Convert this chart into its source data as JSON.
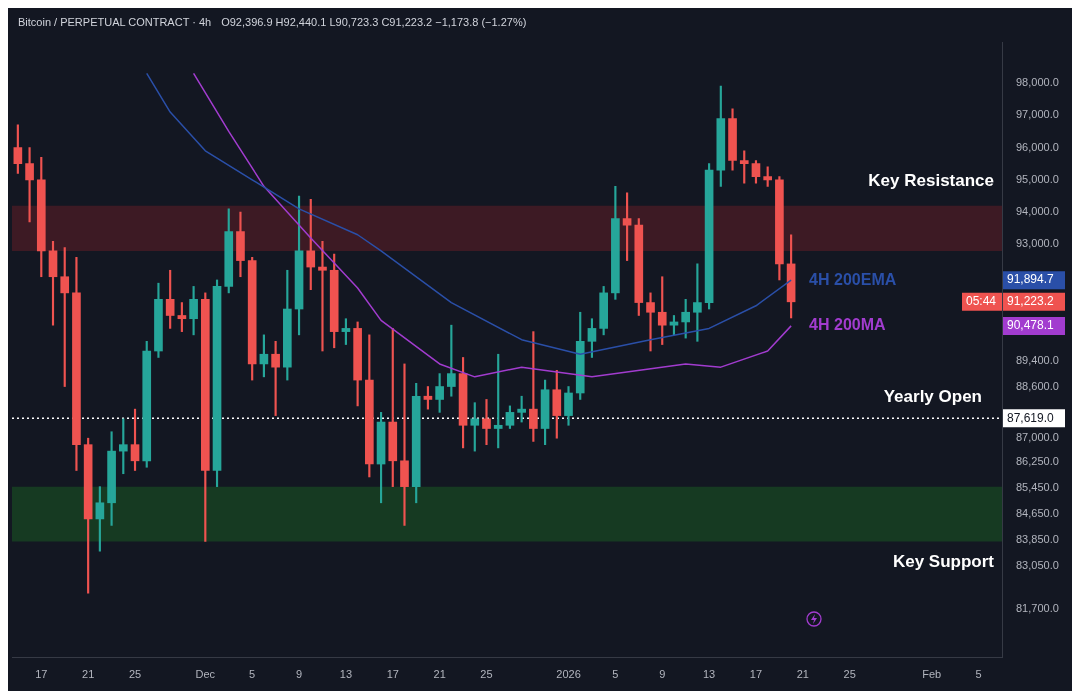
{
  "chart_data": {
    "type": "candlestick",
    "title": "Bitcoin / PERPETUAL CONTRACT · 4h",
    "subtitle": "O92,396.9 H92,440.1 L90,723.3 C91,223.2 −1,173.8 (−1.27%)",
    "annotations": [
      "91,223.2",
      "05:44",
      "91,894.7",
      "90,478.1",
      "87,619.0"
    ],
    "x": [
      "2025-11-15",
      "2025-11-16",
      "2025-11-17",
      "2025-11-18",
      "2025-11-19",
      "2025-11-20",
      "2025-11-21",
      "2025-11-22",
      "2025-11-23",
      "2025-11-24",
      "2025-11-25",
      "2025-11-26",
      "2025-11-27",
      "2025-11-28",
      "2025-11-29",
      "2025-11-30",
      "2025-12-01",
      "2025-12-02",
      "2025-12-03",
      "2025-12-04",
      "2025-12-05",
      "2025-12-06",
      "2025-12-07",
      "2025-12-08",
      "2025-12-09",
      "2025-12-10",
      "2025-12-11",
      "2025-12-12",
      "2025-12-13",
      "2025-12-14",
      "2025-12-15",
      "2025-12-16",
      "2025-12-17",
      "2025-12-18",
      "2025-12-19",
      "2025-12-20",
      "2025-12-21",
      "2025-12-22",
      "2025-12-23",
      "2025-12-24",
      "2025-12-25",
      "2025-12-26",
      "2025-12-27",
      "2025-12-28",
      "2025-12-29",
      "2025-12-30",
      "2025-12-31",
      "2026-01-01",
      "2026-01-02",
      "2026-01-03",
      "2026-01-04",
      "2026-01-05",
      "2026-01-06",
      "2026-01-07",
      "2026-01-08",
      "2026-01-09",
      "2026-01-10",
      "2026-01-11",
      "2026-01-12",
      "2026-01-13",
      "2026-01-14",
      "2026-01-15",
      "2026-01-16",
      "2026-01-17",
      "2026-01-18",
      "2026-01-19",
      "2026-01-20"
    ],
    "ohlc": [
      [
        96000,
        96700,
        95200,
        95500
      ],
      [
        95500,
        96000,
        93700,
        95000
      ],
      [
        95000,
        95700,
        92000,
        92800
      ],
      [
        92800,
        93100,
        90500,
        92000
      ],
      [
        92000,
        92900,
        88600,
        91500
      ],
      [
        91500,
        92600,
        86000,
        86800
      ],
      [
        86800,
        87000,
        82200,
        84500
      ],
      [
        84500,
        85500,
        83500,
        85000
      ],
      [
        85000,
        87200,
        84300,
        86600
      ],
      [
        86600,
        87600,
        85900,
        86800
      ],
      [
        86800,
        87900,
        86000,
        86300
      ],
      [
        86300,
        90000,
        86100,
        89700
      ],
      [
        89700,
        91800,
        89500,
        91300
      ],
      [
        91300,
        92200,
        90400,
        90800
      ],
      [
        90800,
        91200,
        90300,
        90700
      ],
      [
        90700,
        91700,
        90200,
        91300
      ],
      [
        91300,
        91500,
        83800,
        86000
      ],
      [
        86000,
        91900,
        85500,
        91700
      ],
      [
        91700,
        94100,
        91500,
        93400
      ],
      [
        93400,
        94000,
        92000,
        92500
      ],
      [
        92500,
        92600,
        88800,
        89300
      ],
      [
        89300,
        90200,
        88900,
        89600
      ],
      [
        89600,
        90000,
        87700,
        89200
      ],
      [
        89200,
        92200,
        88800,
        91000
      ],
      [
        91000,
        94500,
        90200,
        92800
      ],
      [
        92800,
        94400,
        91600,
        92300
      ],
      [
        92300,
        93100,
        89700,
        92200
      ],
      [
        92200,
        92700,
        89800,
        90300
      ],
      [
        90300,
        90700,
        89900,
        90400
      ],
      [
        90400,
        90600,
        88000,
        88800
      ],
      [
        88800,
        90200,
        85800,
        86200
      ],
      [
        86200,
        87800,
        85000,
        87500
      ],
      [
        87500,
        90400,
        85500,
        86300
      ],
      [
        86300,
        89300,
        84300,
        85500
      ],
      [
        85500,
        88700,
        85000,
        88300
      ],
      [
        88300,
        88600,
        87900,
        88200
      ],
      [
        88200,
        89000,
        87800,
        88600
      ],
      [
        88600,
        90500,
        88300,
        89000
      ],
      [
        89000,
        89500,
        86700,
        87400
      ],
      [
        87400,
        88100,
        86600,
        87600
      ],
      [
        87600,
        88200,
        86800,
        87300
      ],
      [
        87300,
        89600,
        86700,
        87400
      ],
      [
        87400,
        88000,
        87300,
        87800
      ],
      [
        87800,
        88300,
        87500,
        87900
      ],
      [
        87900,
        90300,
        86900,
        87300
      ],
      [
        87300,
        88800,
        86800,
        88500
      ],
      [
        88500,
        89100,
        87000,
        87700
      ],
      [
        87700,
        88600,
        87400,
        88400
      ],
      [
        88400,
        90900,
        88200,
        90000
      ],
      [
        90000,
        90700,
        89500,
        90400
      ],
      [
        90400,
        91700,
        90200,
        91500
      ],
      [
        91500,
        94800,
        91300,
        93800
      ],
      [
        93800,
        94600,
        92500,
        93600
      ],
      [
        93600,
        93800,
        90800,
        91200
      ],
      [
        91200,
        91500,
        89700,
        90900
      ],
      [
        90900,
        92000,
        89900,
        90500
      ],
      [
        90500,
        90800,
        90200,
        90600
      ],
      [
        90600,
        91300,
        90100,
        90900
      ],
      [
        90900,
        92400,
        90000,
        91200
      ],
      [
        91200,
        95500,
        91000,
        95300
      ],
      [
        95300,
        97900,
        94800,
        96900
      ],
      [
        96900,
        97200,
        95300,
        95600
      ],
      [
        95600,
        95900,
        94900,
        95500
      ],
      [
        95500,
        95600,
        94900,
        95100
      ],
      [
        95100,
        95400,
        94800,
        95000
      ],
      [
        95000,
        95100,
        91900,
        92400
      ],
      [
        92396.9,
        93300,
        90723.3,
        91223.2
      ]
    ],
    "colors": [
      "#ef5350",
      "#ef5350",
      "#ef5350",
      "#ef5350",
      "#ef5350",
      "#ef5350",
      "#ef5350",
      "#26a69a",
      "#26a69a",
      "#26a69a",
      "#ef5350",
      "#26a69a",
      "#26a69a",
      "#ef5350",
      "#ef5350",
      "#26a69a",
      "#ef5350",
      "#26a69a",
      "#26a69a",
      "#ef5350",
      "#ef5350",
      "#26a69a",
      "#ef5350",
      "#26a69a",
      "#26a69a",
      "#ef5350",
      "#ef5350",
      "#ef5350",
      "#26a69a",
      "#ef5350",
      "#ef5350",
      "#26a69a",
      "#ef5350",
      "#ef5350",
      "#26a69a",
      "#ef5350",
      "#26a69a",
      "#26a69a",
      "#ef5350",
      "#26a69a",
      "#ef5350",
      "#26a69a",
      "#26a69a",
      "#26a69a",
      "#ef5350",
      "#26a69a",
      "#ef5350",
      "#26a69a",
      "#26a69a",
      "#26a69a",
      "#26a69a",
      "#26a69a",
      "#ef5350",
      "#ef5350",
      "#ef5350",
      "#ef5350",
      "#26a69a",
      "#26a69a",
      "#26a69a",
      "#26a69a",
      "#26a69a",
      "#ef5350",
      "#ef5350",
      "#ef5350",
      "#ef5350",
      "#ef5350",
      "#ef5350"
    ],
    "series": [
      {
        "name": "4H 200EMA",
        "type": "line",
        "color": "#2a4fa8",
        "x": [
          "2025-11-26",
          "2025-11-28",
          "2025-12-01",
          "2025-12-05",
          "2025-12-09",
          "2025-12-14",
          "2025-12-16",
          "2025-12-22",
          "2025-12-28",
          "2026-01-02",
          "2026-01-08",
          "2026-01-13",
          "2026-01-17",
          "2026-01-20"
        ],
        "values": [
          98300,
          97100,
          95900,
          95000,
          94100,
          93300,
          92800,
          91200,
          90050,
          89600,
          90050,
          90400,
          91100,
          91894.7
        ]
      },
      {
        "name": "4H 200MA",
        "type": "line",
        "color": "#a23ccf",
        "x": [
          "2025-11-30",
          "2025-12-03",
          "2025-12-06",
          "2025-12-10",
          "2025-12-14",
          "2025-12-16",
          "2025-12-21",
          "2025-12-24",
          "2025-12-28",
          "2026-01-03",
          "2026-01-11",
          "2026-01-14",
          "2026-01-18",
          "2026-01-20"
        ],
        "values": [
          98300,
          96500,
          94800,
          93200,
          91650,
          90650,
          89300,
          88900,
          89200,
          88900,
          89300,
          89200,
          89700,
          90478.1
        ]
      }
    ],
    "bands": [
      {
        "axis": "y",
        "from": 92800,
        "to": 94200,
        "label": "Key Resistance",
        "color": "#3d1a24"
      },
      {
        "axis": "y",
        "from": 83800,
        "to": 85500,
        "label": "Key Support",
        "color": "#163a22"
      }
    ],
    "ref_lines": [
      {
        "axis": "y",
        "value": 87619,
        "label": "Yearly Open",
        "color": "#ffffff",
        "line_style": "dotted"
      }
    ],
    "xlim": [
      "2025-11-14T12:00",
      "2026-02-07"
    ],
    "xticks": [
      {
        "value": "2025-11-17",
        "label": "17"
      },
      {
        "value": "2025-11-21",
        "label": "21"
      },
      {
        "value": "2025-11-25",
        "label": "25"
      },
      {
        "value": "2025-12-01",
        "label": "Dec"
      },
      {
        "value": "2025-12-05",
        "label": "5"
      },
      {
        "value": "2025-12-09",
        "label": "9"
      },
      {
        "value": "2025-12-13",
        "label": "13"
      },
      {
        "value": "2025-12-17",
        "label": "17"
      },
      {
        "value": "2025-12-21",
        "label": "21"
      },
      {
        "value": "2025-12-25",
        "label": "25"
      },
      {
        "value": "2026-01-01",
        "label": "2026"
      },
      {
        "value": "2026-01-05",
        "label": "5"
      },
      {
        "value": "2026-01-09",
        "label": "9"
      },
      {
        "value": "2026-01-13",
        "label": "13"
      },
      {
        "value": "2026-01-17",
        "label": "17"
      },
      {
        "value": "2026-01-21",
        "label": "21"
      },
      {
        "value": "2026-01-25",
        "label": "25"
      },
      {
        "value": "2026-02-01",
        "label": "Feb"
      },
      {
        "value": "2026-02-05",
        "label": "5"
      }
    ],
    "ylim": [
      80200,
      99250
    ],
    "yticks": [
      {
        "value": 81700,
        "label": "81,700.0"
      },
      {
        "value": 83050,
        "label": "83,050.0"
      },
      {
        "value": 83850,
        "label": "83,850.0"
      },
      {
        "value": 84650,
        "label": "84,650.0"
      },
      {
        "value": 85450,
        "label": "85,450.0"
      },
      {
        "value": 86250,
        "label": "86,250.0"
      },
      {
        "value": 87000,
        "label": "87,000.0"
      },
      {
        "value": 88600,
        "label": "88,600.0"
      },
      {
        "value": 89400,
        "label": "89,400.0"
      },
      {
        "value": 93000,
        "label": "93,000.0"
      },
      {
        "value": 94000,
        "label": "94,000.0"
      },
      {
        "value": 95000,
        "label": "95,000.0"
      },
      {
        "value": 96000,
        "label": "96,000.0"
      },
      {
        "value": 97000,
        "label": "97,000.0"
      },
      {
        "value": 98000,
        "label": "98,000.0"
      }
    ]
  }
}
